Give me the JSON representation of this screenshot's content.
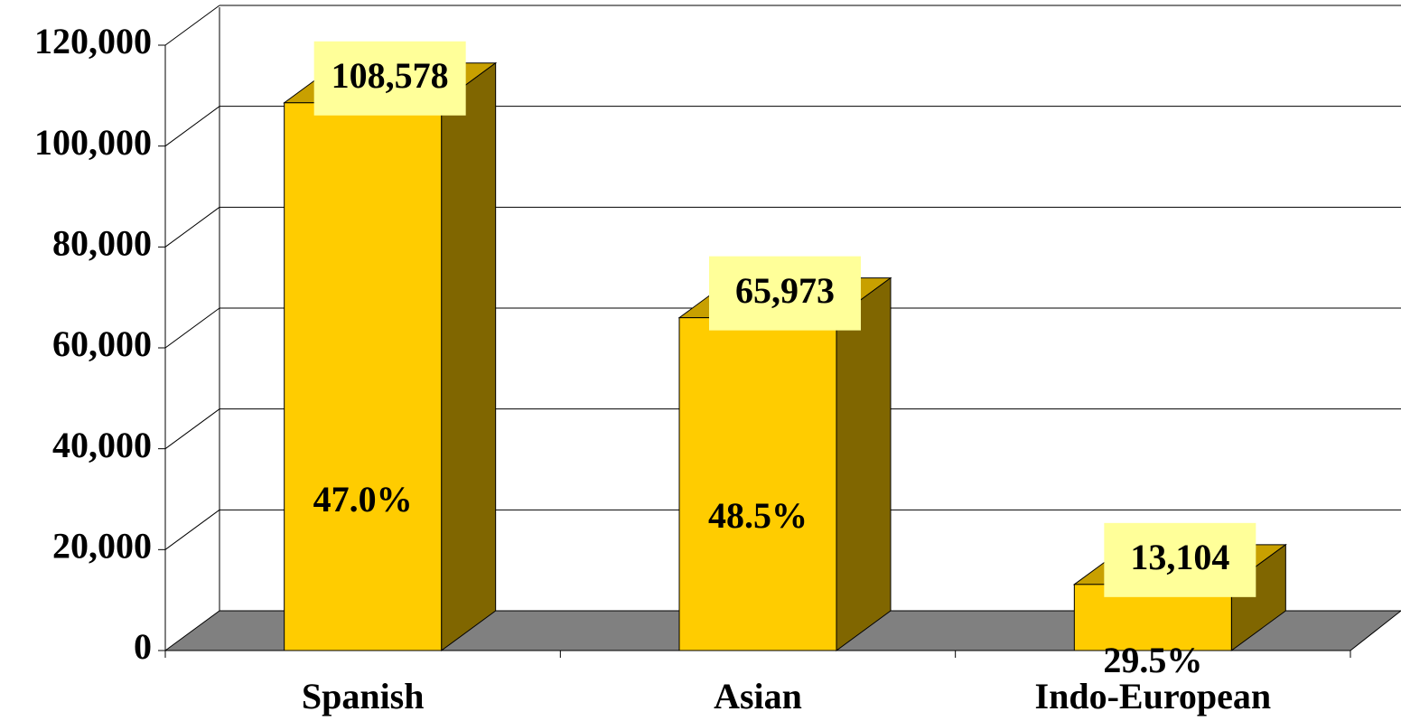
{
  "chart_data": {
    "type": "bar3d",
    "categories": [
      "Spanish",
      "Asian",
      "Indo-European"
    ],
    "values": [
      108578,
      65973,
      13104
    ],
    "value_labels": [
      "108,578",
      "65,973",
      "13,104"
    ],
    "annotations": [
      "47.0%",
      "48.5%",
      "29.5%"
    ],
    "color": "#ffcc00",
    "ylim": [
      0,
      120000
    ],
    "yticks": [
      0,
      {
        "value": 20000,
        "label": "20,000"
      },
      {
        "value": 40000,
        "label": "40,000"
      },
      {
        "value": 60000,
        "label": "60,000"
      },
      {
        "value": 80000,
        "label": "80,000"
      },
      {
        "value": 100000,
        "label": "100,000"
      },
      {
        "value": 120000,
        "label": "120,000"
      }
    ],
    "grid": true
  }
}
